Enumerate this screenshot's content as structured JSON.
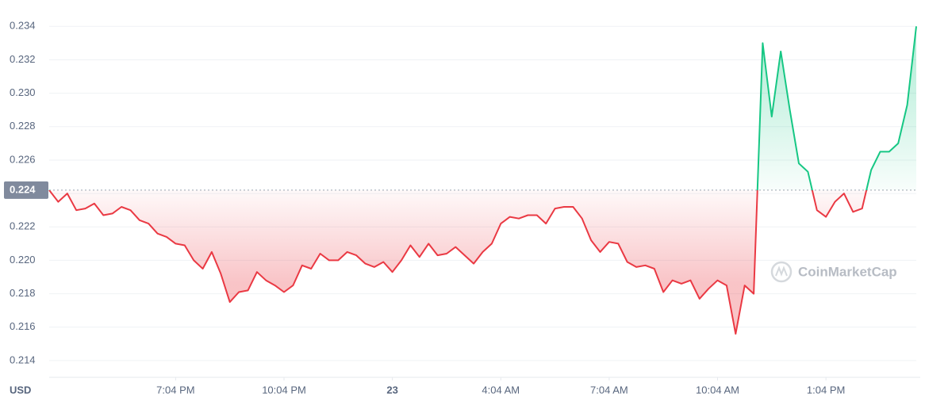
{
  "chart_data": {
    "type": "line",
    "currency": "USD",
    "watermark": "CoinMarketCap",
    "ylim": [
      0.213,
      0.2352
    ],
    "yticks": [
      0.214,
      0.216,
      0.218,
      {
        "value": 0.22,
        "label": "0.220"
      },
      0.222,
      0.224,
      0.226,
      0.228,
      {
        "value": 0.23,
        "label": "0.230"
      },
      0.232,
      0.234
    ],
    "xlim": [
      0,
      96
    ],
    "xticks": [
      {
        "value": 14,
        "label": "7:04 PM"
      },
      {
        "value": 26,
        "label": "10:04 PM"
      },
      {
        "value": 38,
        "label": "23"
      },
      {
        "value": 50,
        "label": "4:04 AM"
      },
      {
        "value": 62,
        "label": "7:04 AM"
      },
      {
        "value": 74,
        "label": "10:04 AM"
      },
      {
        "value": 86,
        "label": "1:04 PM"
      }
    ],
    "reference_line": {
      "value": 0.2242,
      "label": "0.224"
    },
    "grid": true,
    "up_color": "#16c784",
    "down_color": "#ea3943",
    "values": [
      0.2242,
      0.2235,
      0.224,
      0.223,
      0.2231,
      0.2234,
      0.2227,
      0.2228,
      0.2232,
      0.223,
      0.2224,
      0.2222,
      0.2216,
      0.2214,
      0.221,
      0.2209,
      0.22,
      0.2195,
      0.2205,
      0.2192,
      0.2175,
      0.2181,
      0.2182,
      0.2193,
      0.2188,
      0.2185,
      0.2181,
      0.2185,
      0.2197,
      0.2195,
      0.2204,
      0.22,
      0.22,
      0.2205,
      0.2203,
      0.2198,
      0.2196,
      0.2199,
      0.2193,
      0.22,
      0.2209,
      0.2202,
      0.221,
      0.2203,
      0.2204,
      0.2208,
      0.2203,
      0.2198,
      0.2205,
      0.221,
      0.2222,
      0.2226,
      0.2225,
      0.2227,
      0.2227,
      0.2222,
      0.2231,
      0.2232,
      0.2232,
      0.2225,
      0.2212,
      0.2205,
      0.2211,
      0.221,
      0.2199,
      0.2196,
      0.2197,
      0.2195,
      0.2181,
      0.2188,
      0.2186,
      0.2188,
      0.2177,
      0.2183,
      0.2188,
      0.2185,
      0.2156,
      0.2185,
      0.218,
      0.233,
      0.2286,
      0.2325,
      0.229,
      0.2258,
      0.2253,
      0.223,
      0.2226,
      0.2235,
      0.224,
      0.2229,
      0.2231,
      0.2254,
      0.2265,
      0.2265,
      0.227,
      0.2293,
      0.234
    ]
  }
}
